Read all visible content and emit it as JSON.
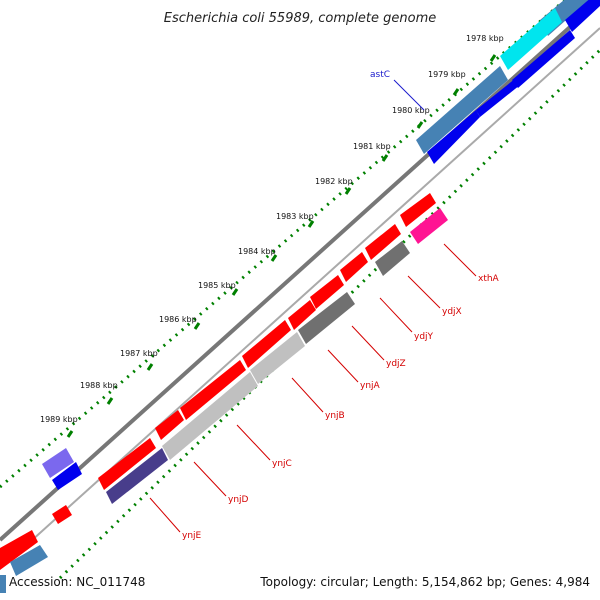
{
  "title": "Escherichia coli 55989, complete genome",
  "accession": "Accession: NC_011748",
  "topology": "Topology: circular; Length: 5,154,862 bp; Genes: 4,984",
  "kbp_ticks": [
    "1978 kbp",
    "1979 kbp",
    "1980 kbp",
    "1981 kbp",
    "1982 kbp",
    "1983 kbp",
    "1984 kbp",
    "1985 kbp",
    "1986 kbp",
    "1987 kbp",
    "1988 kbp",
    "1989 kbp"
  ],
  "gene_labels": {
    "astC": "astC",
    "xthA": "xthA",
    "ydjX": "ydjX",
    "ydjY": "ydjY",
    "ydjZ": "ydjZ",
    "ynjA": "ynjA",
    "ynjB": "ynjB",
    "ynjC": "ynjC",
    "ynjD": "ynjD",
    "ynjE": "ynjE"
  },
  "colors": {
    "red": "#ff0000",
    "blue": "#0000ee",
    "steelblue": "#4682b4",
    "cyan": "#00ffff",
    "gray": "#808080",
    "lightgray": "#c0c0c0",
    "darkslate": "#483d8b",
    "mediumslate": "#7b68ee",
    "pink": "#ff1493",
    "green": "#008000"
  }
}
